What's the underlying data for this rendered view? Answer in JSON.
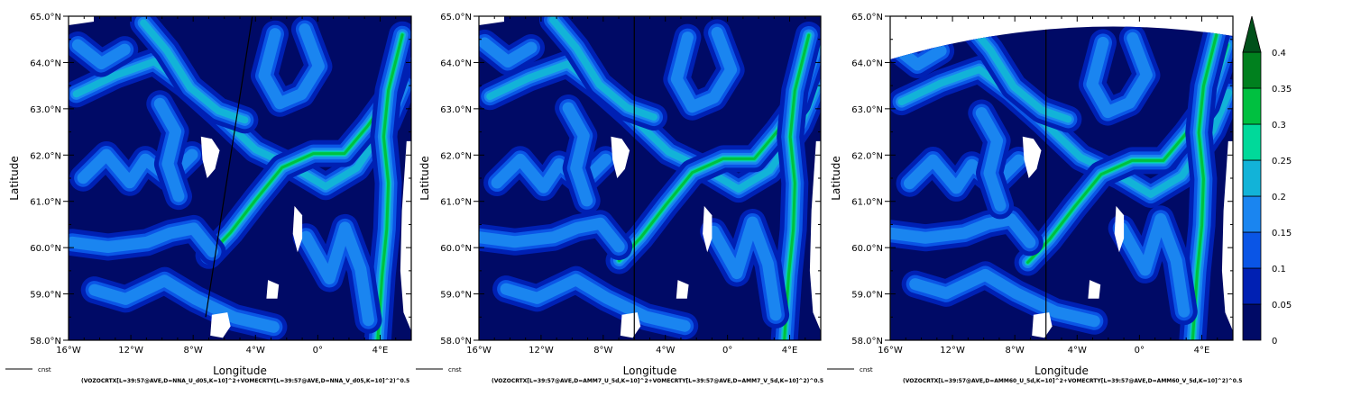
{
  "colors": {
    "levels": [
      "#000a66",
      "#0020b3",
      "#0a55e6",
      "#1a85f0",
      "#12b3d8",
      "#00d99a",
      "#00c040",
      "#00801e",
      "#00501a"
    ],
    "land": "#ffffff",
    "frame": "#000000"
  },
  "colorbar": {
    "levels": [
      "0",
      "0.05",
      "0.1",
      "0.15",
      "0.2",
      "0.25",
      "0.3",
      "0.35",
      "0.4"
    ]
  },
  "chart_data": [
    {
      "type": "heatmap",
      "xlabel": "Longitude",
      "ylabel": "Latitude",
      "xlim": [
        -16,
        6
      ],
      "ylim": [
        58,
        65
      ],
      "xticks": [
        "16°W",
        "12°W",
        "8°W",
        "4°W",
        "0°",
        "4°E"
      ],
      "yticks": [
        "58.0°N",
        "59.0°N",
        "60.0°N",
        "61.0°N",
        "62.0°N",
        "63.0°N",
        "64.0°N",
        "65.0°N"
      ],
      "legend": "cnst",
      "footer": "(VOZOCRTX[L=39:57@AVE,D=NNA_U_d05,K=10]^2+VOMECRTY[L=39:57@AVE,D=NNA_V_d05,K=10]^2)^0.5",
      "section_line": [
        [
          -7.2,
          58.5
        ],
        [
          -4.2,
          65.0
        ]
      ]
    },
    {
      "type": "heatmap",
      "xlabel": "Longitude",
      "ylabel": "Latitude",
      "xlim": [
        -16,
        6
      ],
      "ylim": [
        58,
        65
      ],
      "xticks": [
        "16°W",
        "12°W",
        "8°W",
        "4°W",
        "0°",
        "4°E"
      ],
      "yticks": [
        "58.0°N",
        "59.0°N",
        "60.0°N",
        "61.0°N",
        "62.0°N",
        "63.0°N",
        "64.0°N",
        "65.0°N"
      ],
      "legend": "cnst",
      "footer": "(VOZOCRTX[L=39:57@AVE,D=AMM7_U_5d,K=10]^2+VOMECRTY[L=39:57@AVE,D=AMM7_V_5d,K=10]^2)^0.5",
      "section_line": [
        [
          -6,
          58.0
        ],
        [
          -6,
          65.0
        ]
      ]
    },
    {
      "type": "heatmap",
      "xlabel": "Longitude",
      "ylabel": "Latitude",
      "xlim": [
        -16,
        6
      ],
      "ylim": [
        58,
        65
      ],
      "xticks": [
        "16°W",
        "12°W",
        "8°W",
        "4°W",
        "0°",
        "4°E"
      ],
      "yticks": [
        "58.0°N",
        "59.0°N",
        "60.0°N",
        "61.0°N",
        "62.0°N",
        "63.0°N",
        "64.0°N",
        "65.0°N"
      ],
      "legend": "cnst",
      "footer": "(VOZOCRTX[L=39:57@AVE,D=AMM60_U_5d,K=10]^2+VOMECRTY[L=39:57@AVE,D=AMM60_V_5d,K=10]^2)^0.5",
      "section_line": [
        [
          -6,
          58.0
        ],
        [
          -6,
          65.0
        ]
      ]
    }
  ]
}
